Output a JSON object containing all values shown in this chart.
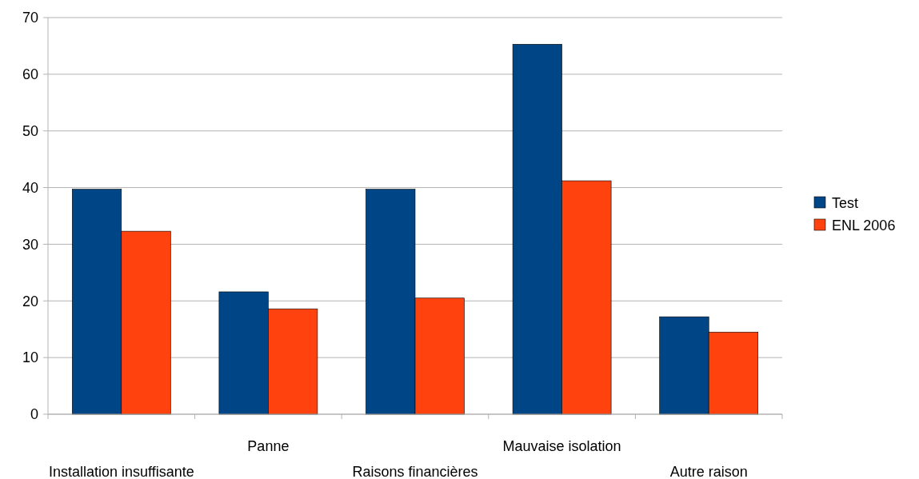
{
  "chart_data": {
    "type": "bar",
    "categories": [
      "Installation insuffisante",
      "Panne",
      "Raisons financières",
      "Mauvaise isolation",
      "Autre raison"
    ],
    "series": [
      {
        "name": "Test",
        "color": "#004586",
        "values": [
          39.7,
          21.6,
          39.7,
          65.3,
          17.2
        ]
      },
      {
        "name": "ENL 2006",
        "color": "#ff420e",
        "values": [
          32.3,
          18.6,
          20.5,
          41.2,
          14.5
        ]
      }
    ],
    "ylim": [
      0,
      70
    ],
    "yticks": [
      0,
      10,
      20,
      30,
      40,
      50,
      60,
      70
    ],
    "grid": "y",
    "legend": "right"
  }
}
